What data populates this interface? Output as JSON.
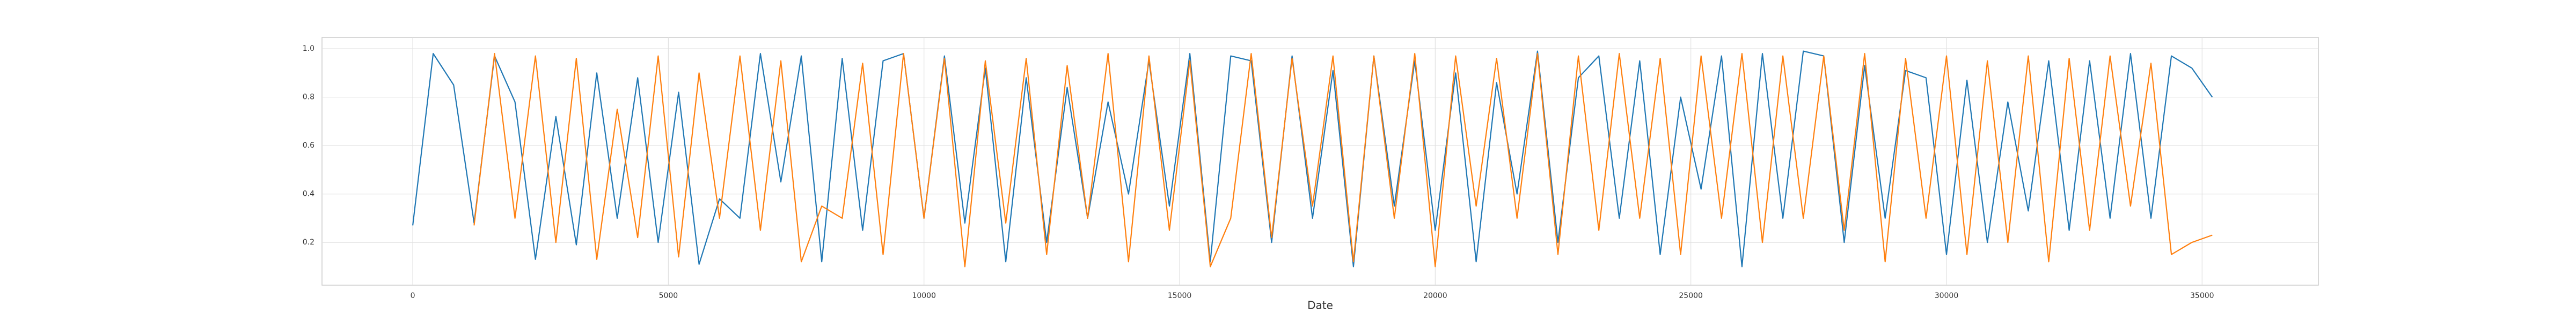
{
  "chart_data": {
    "type": "line",
    "xlabel": "Date",
    "x": [
      0,
      400,
      800,
      1200,
      1600,
      2000,
      2400,
      2800,
      3200,
      3600,
      4000,
      4400,
      4800,
      5200,
      5600,
      6000,
      6400,
      6800,
      7200,
      7600,
      8000,
      8400,
      8800,
      9200,
      9600,
      10000,
      10400,
      10800,
      11200,
      11600,
      12000,
      12400,
      12800,
      13200,
      13600,
      14000,
      14400,
      14800,
      15200,
      15600,
      16000,
      16400,
      16800,
      17200,
      17600,
      18000,
      18400,
      18800,
      19200,
      19600,
      20000,
      20400,
      20800,
      21200,
      21600,
      22000,
      22400,
      22800,
      23200,
      23600,
      24000,
      24400,
      24800,
      25200,
      25600,
      26000,
      26400,
      26800,
      27200,
      27600,
      28000,
      28400,
      28800,
      29200,
      29600,
      30000,
      30400,
      30800,
      31200,
      31600,
      32000,
      32400,
      32800,
      33200,
      33600,
      34000,
      34400,
      34800,
      35200
    ],
    "series": [
      {
        "color": "#1f77b4",
        "values": [
          0.27,
          0.98,
          0.85,
          0.28,
          0.97,
          0.78,
          0.13,
          0.72,
          0.19,
          0.9,
          0.3,
          0.88,
          0.2,
          0.82,
          0.11,
          0.38,
          0.3,
          0.98,
          0.45,
          0.97,
          0.12,
          0.96,
          0.25,
          0.95,
          0.98,
          0.3,
          0.97,
          0.28,
          0.92,
          0.12,
          0.88,
          0.2,
          0.84,
          0.3,
          0.78,
          0.4,
          0.95,
          0.35,
          0.98,
          0.12,
          0.97,
          0.95,
          0.2,
          0.97,
          0.3,
          0.91,
          0.1,
          0.97,
          0.35,
          0.95,
          0.25,
          0.9,
          0.12,
          0.86,
          0.4,
          0.99,
          0.2,
          0.88,
          0.97,
          0.3,
          0.95,
          0.15,
          0.8,
          0.42,
          0.97,
          0.1,
          0.98,
          0.3,
          0.99,
          0.97,
          0.2,
          0.93,
          0.3,
          0.91,
          0.88,
          0.15,
          0.87,
          0.2,
          0.78,
          0.33,
          0.95,
          0.25,
          0.95,
          0.3,
          0.98,
          0.3,
          0.97,
          0.92,
          0.8
        ]
      },
      {
        "color": "#ff7f0e",
        "values": [
          null,
          null,
          null,
          0.27,
          0.98,
          0.3,
          0.97,
          0.2,
          0.96,
          0.13,
          0.75,
          0.22,
          0.97,
          0.14,
          0.9,
          0.3,
          0.97,
          0.25,
          0.95,
          0.12,
          0.35,
          0.3,
          0.94,
          0.15,
          0.98,
          0.3,
          0.96,
          0.1,
          0.95,
          0.28,
          0.96,
          0.15,
          0.93,
          0.3,
          0.98,
          0.12,
          0.97,
          0.25,
          0.95,
          0.1,
          0.3,
          0.98,
          0.22,
          0.96,
          0.35,
          0.97,
          0.12,
          0.97,
          0.3,
          0.98,
          0.1,
          0.97,
          0.35,
          0.96,
          0.3,
          0.98,
          0.15,
          0.97,
          0.25,
          0.98,
          0.3,
          0.96,
          0.15,
          0.97,
          0.3,
          0.98,
          0.2,
          0.97,
          0.3,
          0.97,
          0.25,
          0.98,
          0.12,
          0.96,
          0.3,
          0.97,
          0.15,
          0.95,
          0.2,
          0.97,
          0.12,
          0.96,
          0.25,
          0.97,
          0.35,
          0.94,
          0.15,
          0.2,
          0.23
        ]
      }
    ],
    "xlim": [
      -1775,
      37275
    ],
    "xticks": [
      0,
      5000,
      10000,
      15000,
      20000,
      25000,
      30000,
      35000
    ],
    "ylim": [
      0.0235,
      1.0465
    ],
    "yticks": [
      0.2,
      0.4,
      0.6,
      0.8,
      {
        "value": 1,
        "label": "1.0"
      }
    ],
    "grid": true
  }
}
